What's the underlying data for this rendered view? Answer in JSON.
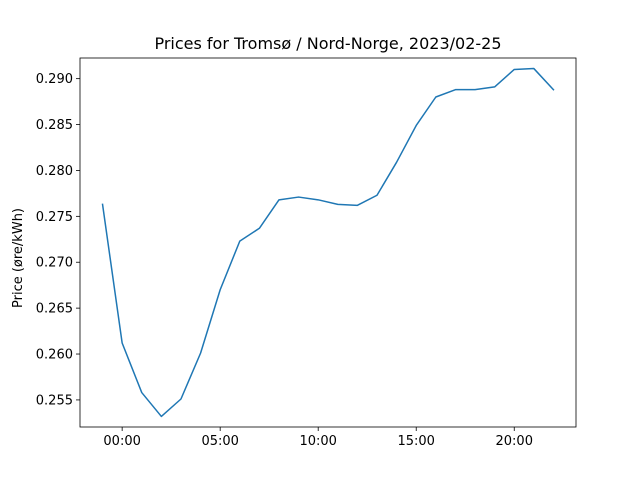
{
  "chart_data": {
    "type": "line",
    "title": "Prices for Tromsø / Nord-Norge, 2023/02-25",
    "xlabel": "",
    "ylabel": "Price (øre/kWh)",
    "x_ticks": [
      "00:00",
      "05:00",
      "10:00",
      "15:00",
      "20:00"
    ],
    "x_tick_hours": [
      0,
      5,
      10,
      15,
      20
    ],
    "y_ticks": [
      "0.255",
      "0.260",
      "0.265",
      "0.270",
      "0.275",
      "0.280",
      "0.285",
      "0.290"
    ],
    "y_tick_values": [
      0.255,
      0.26,
      0.265,
      0.27,
      0.275,
      0.28,
      0.285,
      0.29
    ],
    "xlim_hours": [
      -2.15,
      23.15
    ],
    "ylim": [
      0.25205,
      0.29225
    ],
    "grid": false,
    "series": [
      {
        "color": "#1f77b4",
        "x_hours": [
          -1,
          0,
          1,
          2,
          3,
          4,
          5,
          6,
          7,
          8,
          9,
          10,
          11,
          12,
          13,
          14,
          15,
          16,
          17,
          18,
          19,
          20,
          21,
          22
        ],
        "values": [
          0.2763,
          0.2612,
          0.2558,
          0.2532,
          0.2551,
          0.2601,
          0.267,
          0.2723,
          0.2737,
          0.2768,
          0.2771,
          0.2768,
          0.2763,
          0.2762,
          0.2773,
          0.2809,
          0.2849,
          0.288,
          0.2888,
          0.2888,
          0.2891,
          0.291,
          0.2911,
          0.2888
        ]
      }
    ]
  }
}
